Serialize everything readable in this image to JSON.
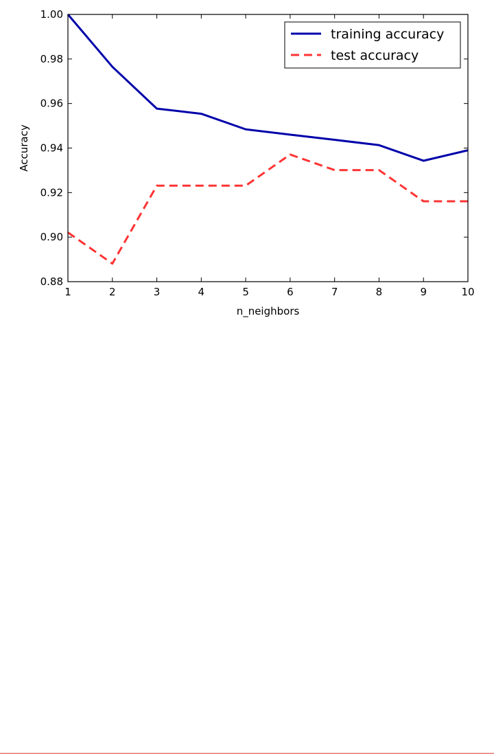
{
  "chart_data": {
    "type": "line",
    "x": [
      1,
      2,
      3,
      4,
      5,
      6,
      7,
      8,
      9,
      10
    ],
    "series": [
      {
        "name": "training accuracy",
        "color": "#0000aa",
        "dash": "solid",
        "values": [
          1.0,
          0.9765,
          0.9577,
          0.9554,
          0.9484,
          0.946,
          0.9437,
          0.9413,
          0.9343,
          0.939
        ]
      },
      {
        "name": "test accuracy",
        "color": "#ff3333",
        "dash": "dashed",
        "values": [
          0.9021,
          0.8881,
          0.9231,
          0.9231,
          0.9231,
          0.9371,
          0.9301,
          0.9301,
          0.9161,
          0.9161
        ]
      }
    ],
    "xlabel": "n_neighbors",
    "ylabel": "Accuracy",
    "xlim": [
      1,
      10
    ],
    "ylim": [
      0.88,
      1.0
    ],
    "xticks": [
      "1",
      "2",
      "3",
      "4",
      "5",
      "6",
      "7",
      "8",
      "9",
      "10"
    ],
    "yticks": [
      "0.88",
      "0.90",
      "0.92",
      "0.94",
      "0.96",
      "0.98",
      "1.00"
    ],
    "legend": "top-right",
    "grid": false
  }
}
